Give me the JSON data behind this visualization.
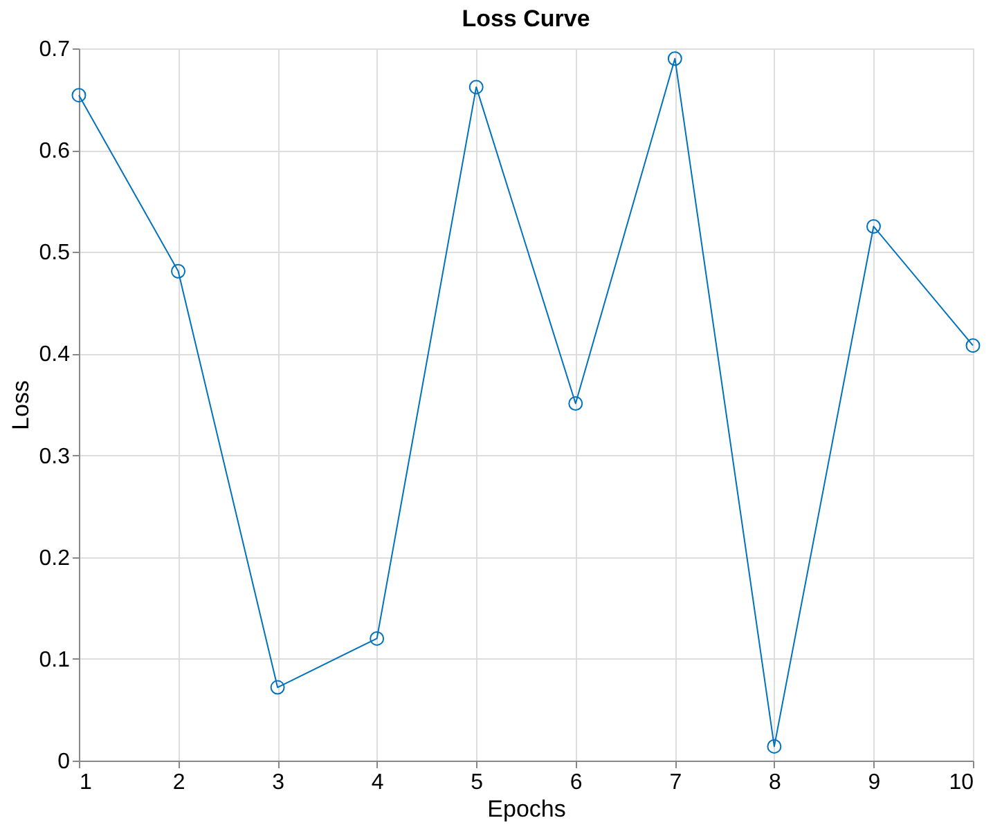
{
  "chart_data": {
    "type": "line",
    "title": "Loss Curve",
    "xlabel": "Epochs",
    "ylabel": "Loss",
    "x": [
      1,
      2,
      3,
      4,
      5,
      6,
      7,
      8,
      9,
      10
    ],
    "series": [
      {
        "color": "#0072bd",
        "values": [
          0.654,
          0.481,
          0.072,
          0.12,
          0.662,
          0.351,
          0.69,
          0.014,
          0.525,
          0.408
        ]
      }
    ],
    "xlim": [
      1,
      10
    ],
    "xticks": [
      1,
      2,
      3,
      4,
      5,
      6,
      7,
      8,
      9,
      10
    ],
    "ylim": [
      0,
      0.7
    ],
    "yticks": [
      0,
      0.1,
      0.2,
      0.3,
      0.4,
      0.5,
      0.6,
      0.7
    ],
    "grid": true,
    "marker": "circle",
    "line_style": "solid",
    "legend": false
  }
}
